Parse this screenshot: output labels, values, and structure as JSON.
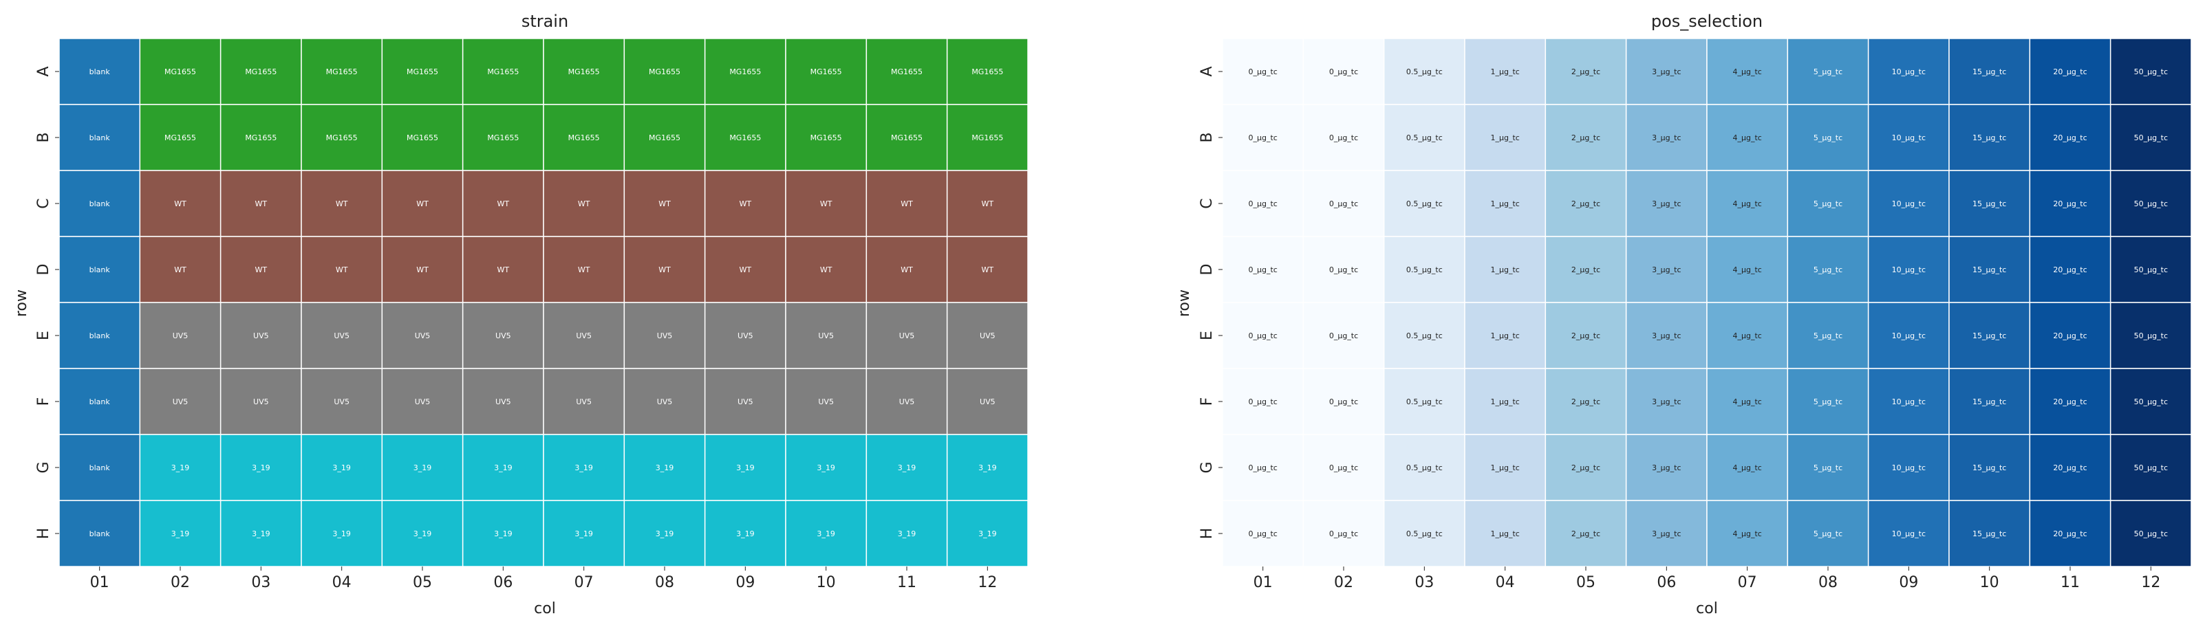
{
  "chart_data": [
    {
      "type": "heatmap",
      "title": "strain",
      "xlabel": "col",
      "ylabel": "row",
      "rows": [
        "A",
        "B",
        "C",
        "D",
        "E",
        "F",
        "G",
        "H"
      ],
      "cols": [
        "01",
        "02",
        "03",
        "04",
        "05",
        "06",
        "07",
        "08",
        "09",
        "10",
        "11",
        "12"
      ],
      "grid": false,
      "color_map": {
        "blank": "#1f77b4",
        "MG1655": "#2ca02c",
        "WT": "#8c564b",
        "UV5": "#7f7f7f",
        "3_19": "#17becf"
      },
      "cells": [
        [
          "blank",
          "MG1655",
          "MG1655",
          "MG1655",
          "MG1655",
          "MG1655",
          "MG1655",
          "MG1655",
          "MG1655",
          "MG1655",
          "MG1655",
          "MG1655"
        ],
        [
          "blank",
          "MG1655",
          "MG1655",
          "MG1655",
          "MG1655",
          "MG1655",
          "MG1655",
          "MG1655",
          "MG1655",
          "MG1655",
          "MG1655",
          "MG1655"
        ],
        [
          "blank",
          "WT",
          "WT",
          "WT",
          "WT",
          "WT",
          "WT",
          "WT",
          "WT",
          "WT",
          "WT",
          "WT"
        ],
        [
          "blank",
          "WT",
          "WT",
          "WT",
          "WT",
          "WT",
          "WT",
          "WT",
          "WT",
          "WT",
          "WT",
          "WT"
        ],
        [
          "blank",
          "UV5",
          "UV5",
          "UV5",
          "UV5",
          "UV5",
          "UV5",
          "UV5",
          "UV5",
          "UV5",
          "UV5",
          "UV5"
        ],
        [
          "blank",
          "UV5",
          "UV5",
          "UV5",
          "UV5",
          "UV5",
          "UV5",
          "UV5",
          "UV5",
          "UV5",
          "UV5",
          "UV5"
        ],
        [
          "blank",
          "3_19",
          "3_19",
          "3_19",
          "3_19",
          "3_19",
          "3_19",
          "3_19",
          "3_19",
          "3_19",
          "3_19",
          "3_19"
        ],
        [
          "blank",
          "3_19",
          "3_19",
          "3_19",
          "3_19",
          "3_19",
          "3_19",
          "3_19",
          "3_19",
          "3_19",
          "3_19",
          "3_19"
        ]
      ]
    },
    {
      "type": "heatmap",
      "title": "pos_selection",
      "xlabel": "col",
      "ylabel": "row",
      "rows": [
        "A",
        "B",
        "C",
        "D",
        "E",
        "F",
        "G",
        "H"
      ],
      "cols": [
        "01",
        "02",
        "03",
        "04",
        "05",
        "06",
        "07",
        "08",
        "09",
        "10",
        "11",
        "12"
      ],
      "grid": false,
      "colormap": "Blues",
      "col_values": [
        "0_µg_tc",
        "0_µg_tc",
        "0.5_µg_tc",
        "1_µg_tc",
        "2_µg_tc",
        "3_µg_tc",
        "4_µg_tc",
        "5_µg_tc",
        "10_µg_tc",
        "15_µg_tc",
        "20_µg_tc",
        "50_µg_tc"
      ],
      "col_colors": [
        "#f7fbff",
        "#f7fbff",
        "#deebf7",
        "#c6dbef",
        "#9ecae1",
        "#84b9db",
        "#6baed6",
        "#4292c6",
        "#2171b5",
        "#1762a8",
        "#08519c",
        "#08306b"
      ]
    }
  ]
}
